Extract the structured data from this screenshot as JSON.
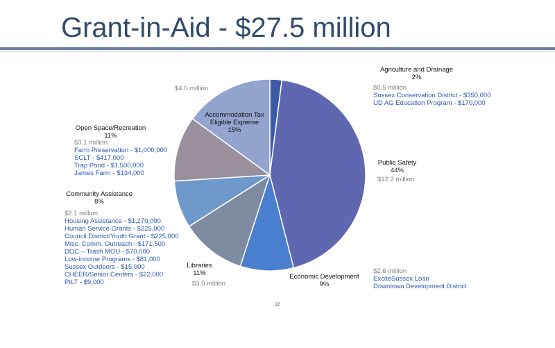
{
  "title": "Grant-in-Aid - $27.5 million",
  "page_number": "22",
  "chart_data": {
    "type": "pie",
    "title": "Grant-in-Aid - $27.5 million",
    "slices": [
      {
        "name": "Agriculture and Drainage",
        "percent": 2,
        "percent_label": "2%",
        "amount": "$0.5 million",
        "details": [
          "Sussex Conservation District - $350,000",
          "UD AG Education Program - $170,000"
        ],
        "color": "#3c5aa6"
      },
      {
        "name": "Public Safety",
        "percent": 44,
        "percent_label": "44%",
        "amount": "$12.2 million",
        "details": [],
        "color": "#5e67b0"
      },
      {
        "name": "Economic Development",
        "percent": 9,
        "percent_label": "9%",
        "amount": "$2.6 million",
        "details": [
          "ExciteSussex Loan",
          "Downtown Development District"
        ],
        "color": "#4a7fd0"
      },
      {
        "name": "Libraries",
        "percent": 11,
        "percent_label": "11%",
        "amount": "$3.0 million",
        "details": [],
        "color": "#7e8ba3"
      },
      {
        "name": "Community Assistance",
        "percent": 8,
        "percent_label": "8%",
        "amount": "$2.1 million",
        "details": [
          "Housing Assistance - $1,270,000",
          "Human Service Grants - $225,000",
          "Council District/Youth Grant - $225,000",
          "Misc. Comm. Outreach - $171,500",
          "DOC – Trash MOU - $70,000",
          "Low-income Programs - $81,000",
          "Sussex Outdoors - $15,000",
          "CHEER/Senior Centers - $22,000",
          "PILT - $9,000"
        ],
        "color": "#6f99cb"
      },
      {
        "name": "Open Space/Recreation",
        "percent": 11,
        "percent_label": "11%",
        "amount": "$3.1 million",
        "details": [
          "Farm Preservation - $1,000,000",
          "SCLT - $417,000",
          "Trap Pond - $1,500,000",
          "James Farm - $134,000"
        ],
        "color": "#9a8f9d"
      },
      {
        "name": "Accommodation Tax Eligible Expense",
        "name_lines": [
          "Accommodation Tax",
          "Eligible Expense"
        ],
        "percent": 15,
        "percent_label": "15%",
        "amount": "$4.0 million",
        "details": [],
        "color": "#93a4cf"
      }
    ]
  }
}
